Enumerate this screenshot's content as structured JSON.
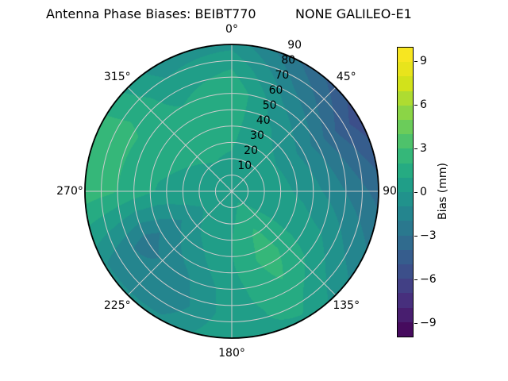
{
  "title": {
    "left": "Antenna Phase Biases: BEIBT770",
    "right": "NONE GALILEO-E1"
  },
  "polar": {
    "angular_tick_labels": [
      {
        "angle": 0,
        "label": "0°"
      },
      {
        "angle": 45,
        "label": "45°"
      },
      {
        "angle": 90,
        "label": "90"
      },
      {
        "angle": 135,
        "label": "135°"
      },
      {
        "angle": 180,
        "label": "180°"
      },
      {
        "angle": 225,
        "label": "225°"
      },
      {
        "angle": 270,
        "label": "270°"
      },
      {
        "angle": 315,
        "label": "315°"
      }
    ],
    "radial_tick_labels": [
      "10",
      "20",
      "30",
      "40",
      "50",
      "60",
      "70",
      "80",
      "90"
    ],
    "radial_tick_values": [
      10,
      20,
      30,
      40,
      50,
      60,
      70,
      80,
      90
    ],
    "radial_max": 90,
    "grid_color": "#cccccc",
    "edge_color": "#000000",
    "background_color": "#ffffff"
  },
  "colorbar": {
    "label": "Bias (mm)",
    "min": -10,
    "max": 10,
    "bands": 20,
    "ticks": [
      {
        "value": 9,
        "label": "9"
      },
      {
        "value": 6,
        "label": "6"
      },
      {
        "value": 3,
        "label": "3"
      },
      {
        "value": 0,
        "label": "0"
      },
      {
        "value": -3,
        "label": "−3"
      },
      {
        "value": -6,
        "label": "−6"
      },
      {
        "value": -9,
        "label": "−9"
      }
    ]
  },
  "chart_data": {
    "type": "heatmap",
    "projection": "polar",
    "title": "Antenna Phase Biases: BEIBT770        NONE GALILEO-E1",
    "colorbar_label": "Bias (mm)",
    "units": "mm",
    "value_range": [
      -10,
      10
    ],
    "contour_step_mm": 1,
    "angular_axis": "azimuth (deg, 0 at top, clockwise)",
    "radial_axis": "zenith angle (deg, 0 center to 90 edge)",
    "azimuth_deg": [
      0,
      30,
      60,
      90,
      120,
      150,
      180,
      210,
      240,
      270,
      300,
      330
    ],
    "zenith_deg": [
      0,
      15,
      30,
      45,
      60,
      75,
      90
    ],
    "values_mm": [
      [
        0.6,
        0.6,
        0.6,
        0.6,
        0.6,
        0.6,
        0.6,
        0.6,
        0.6,
        0.6,
        0.6,
        0.6
      ],
      [
        0.8,
        0.5,
        0.4,
        0.5,
        0.8,
        1.4,
        0.8,
        0.5,
        0.3,
        0.6,
        0.8,
        0.9
      ],
      [
        1.1,
        0.4,
        0.1,
        0.3,
        0.8,
        2.2,
        1.0,
        0.3,
        -0.6,
        0.7,
        1.0,
        1.2
      ],
      [
        1.4,
        0.1,
        -0.9,
        -0.3,
        0.6,
        2.6,
        0.9,
        -0.4,
        -1.7,
        0.9,
        1.3,
        1.4
      ],
      [
        1.9,
        -0.8,
        -2.4,
        -1.3,
        0.3,
        2.1,
        0.6,
        -1.3,
        -2.5,
        1.6,
        1.8,
        1.0
      ],
      [
        1.0,
        -2.0,
        -4.2,
        -2.4,
        -0.7,
        1.4,
        0.6,
        -1.8,
        -1.7,
        2.2,
        2.3,
        0.3
      ],
      [
        -0.3,
        -3.2,
        -5.7,
        -3.4,
        -1.6,
        0.9,
        0.9,
        -0.8,
        -0.9,
        2.6,
        2.1,
        -0.6
      ]
    ],
    "palette_viridis": [
      "#440154",
      "#481a6c",
      "#472f7d",
      "#414487",
      "#39568c",
      "#31688e",
      "#2a788e",
      "#23888e",
      "#1f988b",
      "#22a884",
      "#35b779",
      "#54c568",
      "#7ad151",
      "#a5db36",
      "#d2e21b",
      "#eee51c",
      "#fde725"
    ]
  }
}
